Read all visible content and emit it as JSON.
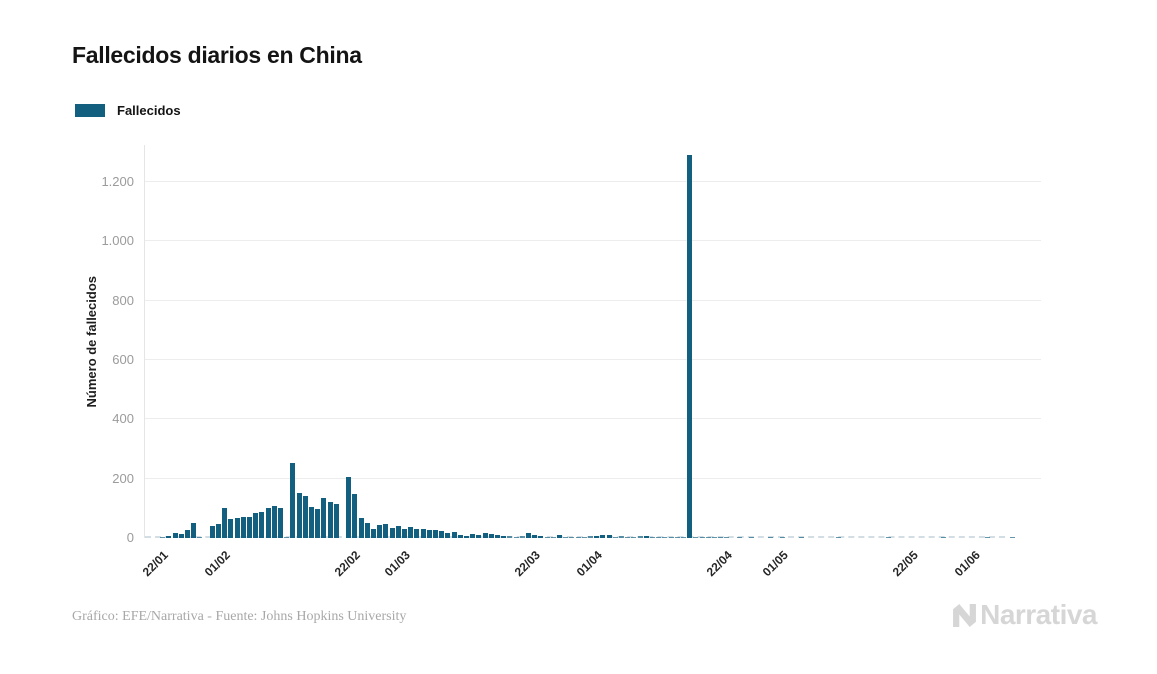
{
  "header": {
    "title": "Fallecidos diarios en China"
  },
  "legend": {
    "label": "Fallecidos",
    "swatch_color": "#135F80"
  },
  "chart_data": {
    "type": "bar",
    "title": "Fallecidos diarios en China",
    "xlabel": "",
    "ylabel": "Número de fallecidos",
    "legend_position": "top-left",
    "grid": "horizontal",
    "bar_color": "#135F80",
    "ylim": [
      0,
      1325
    ],
    "yticks": [
      0,
      200,
      400,
      600,
      800,
      1000,
      1200
    ],
    "ytick_labels": [
      "0",
      "200",
      "400",
      "600",
      "800",
      "1.000",
      "1.200"
    ],
    "xticks": [
      {
        "label": "22/01",
        "day": 0
      },
      {
        "label": "01/02",
        "day": 10
      },
      {
        "label": "22/02",
        "day": 31
      },
      {
        "label": "01/03",
        "day": 39
      },
      {
        "label": "22/03",
        "day": 60
      },
      {
        "label": "01/04",
        "day": 70
      },
      {
        "label": "22/04",
        "day": 91
      },
      {
        "label": "01/05",
        "day": 100
      },
      {
        "label": "22/05",
        "day": 121
      },
      {
        "label": "01/06",
        "day": 131
      }
    ],
    "peak": {
      "date": "17/04",
      "value": 1290
    },
    "series": [
      {
        "name": "Fallecidos",
        "color": "#135F80",
        "dates": [
          "22/01",
          "23/01",
          "24/01",
          "25/01",
          "26/01",
          "27/01",
          "28/01",
          "29/01",
          "30/01",
          "31/01",
          "01/02",
          "02/02",
          "03/02",
          "04/02",
          "05/02",
          "06/02",
          "07/02",
          "08/02",
          "09/02",
          "10/02",
          "11/02",
          "12/02",
          "13/02",
          "14/02",
          "15/02",
          "16/02",
          "17/02",
          "18/02",
          "19/02",
          "20/02",
          "21/02",
          "22/02",
          "23/02",
          "24/02",
          "25/02",
          "26/02",
          "27/02",
          "28/02",
          "29/02",
          "01/03",
          "02/03",
          "03/03",
          "04/03",
          "05/03",
          "06/03",
          "07/03",
          "08/03",
          "09/03",
          "10/03",
          "11/03",
          "12/03",
          "13/03",
          "14/03",
          "15/03",
          "16/03",
          "17/03",
          "18/03",
          "19/03",
          "20/03",
          "21/03",
          "22/03",
          "23/03",
          "24/03",
          "25/03",
          "26/03",
          "27/03",
          "28/03",
          "29/03",
          "30/03",
          "31/03",
          "01/04",
          "02/04",
          "03/04",
          "04/04",
          "05/04",
          "06/04",
          "07/04",
          "08/04",
          "09/04",
          "10/04",
          "11/04",
          "12/04",
          "13/04",
          "14/04",
          "15/04",
          "16/04",
          "17/04",
          "18/04",
          "19/04",
          "20/04",
          "21/04",
          "22/04",
          "23/04",
          "24/04",
          "25/04",
          "26/04",
          "27/04",
          "28/04",
          "29/04",
          "30/04",
          "01/05",
          "02/05",
          "03/05",
          "04/05",
          "05/05",
          "06/05",
          "07/05",
          "08/05",
          "09/05",
          "10/05",
          "11/05",
          "12/05",
          "13/05",
          "14/05",
          "15/05",
          "16/05",
          "17/05",
          "18/05",
          "19/05",
          "20/05",
          "21/05",
          "22/05",
          "23/05",
          "24/05",
          "25/05",
          "26/05",
          "27/05",
          "28/05",
          "29/05",
          "30/05",
          "31/05",
          "01/06",
          "02/06",
          "03/06",
          "04/06",
          "05/06",
          "06/06",
          "07/06",
          "08/06"
        ],
        "values": [
          0,
          1,
          8,
          16,
          15,
          26,
          49,
          2,
          0,
          40,
          46,
          102,
          64,
          66,
          72,
          70,
          85,
          87,
          100,
          107,
          100,
          5,
          254,
          152,
          143,
          106,
          98,
          136,
          122,
          113,
          0,
          205,
          150,
          68,
          52,
          29,
          44,
          47,
          35,
          42,
          31,
          38,
          31,
          30,
          28,
          27,
          22,
          17,
          19,
          11,
          7,
          13,
          10,
          16,
          14,
          11,
          8,
          6,
          5,
          6,
          16,
          11,
          7,
          4,
          5,
          9,
          5,
          3,
          5,
          4,
          6,
          7,
          11,
          11,
          4,
          6,
          2,
          5,
          6,
          7,
          4,
          2,
          3,
          2,
          1,
          1,
          1290,
          1,
          2,
          1,
          1,
          2,
          1,
          0,
          1,
          0,
          1,
          0,
          0,
          1,
          0,
          1,
          0,
          0,
          1,
          0,
          0,
          0,
          0,
          0,
          1,
          0,
          0,
          0,
          0,
          0,
          0,
          0,
          1,
          0,
          0,
          0,
          0,
          0,
          0,
          0,
          0,
          1,
          0,
          0,
          0,
          0,
          0,
          0,
          1,
          0,
          0,
          0,
          1
        ]
      }
    ]
  },
  "footer": {
    "credit": "Gráfico: EFE/Narrativa - Fuente: Johns Hopkins University",
    "logo_text": "Narrativa"
  }
}
